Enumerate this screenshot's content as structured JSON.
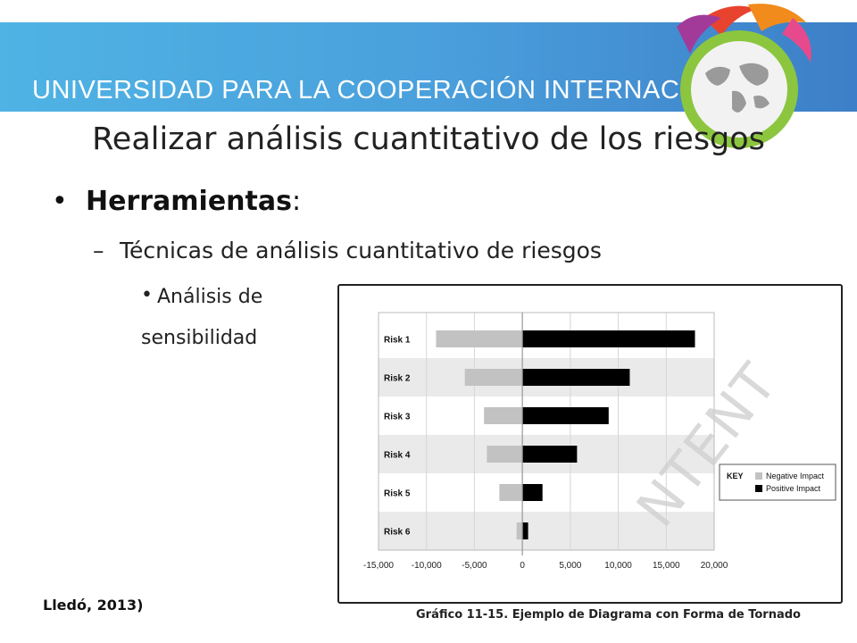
{
  "header": {
    "banner_text": "UNIVERSIDAD PARA LA COOPERACIÓN INTERNACIONAL"
  },
  "slide": {
    "title": "Realizar análisis cuantitativo de los riesgos",
    "bullet1_bold": "Herramientas",
    "bullet1_suffix": ":",
    "bullet2_dash": "–",
    "bullet2": "Técnicas de análisis cuantitativo de riesgos",
    "bullet3_line1": "Análisis de",
    "bullet3_line2": "sensibilidad",
    "citation": "Lledó, 2013)",
    "caption": "Gráfico 11-15. Ejemplo de Diagrama con Forma de Tornado",
    "watermark": "NTENT"
  },
  "colors": {
    "negative": "#c2c2c2",
    "positive": "#000000",
    "row_band": "#eaeaea"
  },
  "chart_data": {
    "type": "bar",
    "orientation": "horizontal",
    "categories": [
      "Risk 1",
      "Risk 2",
      "Risk 3",
      "Risk 4",
      "Risk 5",
      "Risk 6"
    ],
    "series": [
      {
        "name": "Negative Impact",
        "values": [
          -9000,
          -6000,
          -4000,
          -3700,
          -2400,
          -600
        ]
      },
      {
        "name": "Positive Impact",
        "values": [
          18000,
          11200,
          9000,
          5700,
          2100,
          600
        ]
      }
    ],
    "xlim": [
      -15000,
      20000
    ],
    "xticks": [
      -15000,
      -10000,
      -5000,
      0,
      5000,
      10000,
      15000,
      20000
    ],
    "xtick_labels": [
      "-15,000",
      "-10,000",
      "-5,000",
      "0",
      "5,000",
      "10,000",
      "15,000",
      "20,000"
    ],
    "legend": {
      "title": "KEY",
      "entries": [
        "Negative Impact",
        "Positive Impact"
      ],
      "placement": "right"
    },
    "grid": true
  }
}
